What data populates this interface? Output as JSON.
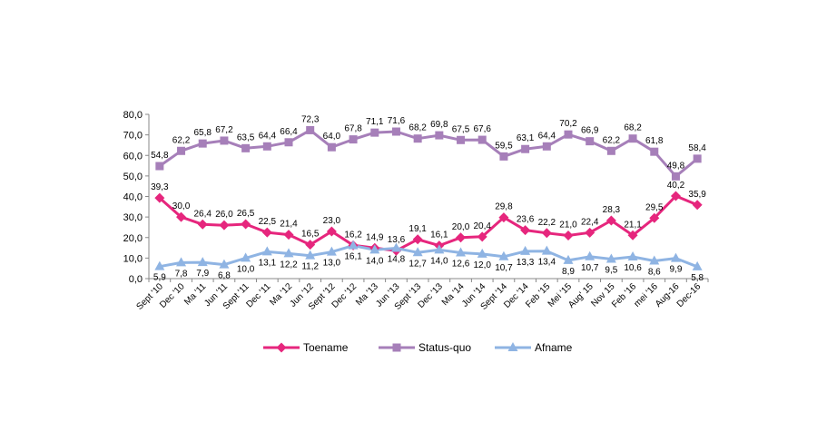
{
  "chart_data": {
    "type": "line",
    "categories": [
      "Sept '10",
      "Dec '10",
      "Ma '11",
      "Jun '11",
      "Sept '11",
      "Dec '11",
      "Ma '12",
      "Jun '12",
      "Sept '12",
      "Dec '12",
      "Ma '13",
      "Jun '13",
      "Sept '13",
      "Dec '13",
      "Ma '14",
      "Jun '14",
      "Sept '14",
      "Dec '14",
      "Feb '15",
      "Mei '15",
      "Aug' 15",
      "Nov 15",
      "Feb '16",
      "mei '16",
      "Aug-16",
      "Dec-16"
    ],
    "ylim": [
      0,
      80
    ],
    "yticks": [
      "0,0",
      "10,0",
      "20,0",
      "30,0",
      "40,0",
      "50,0",
      "60,0",
      "70,0",
      "80,0"
    ],
    "grid": false,
    "legend_position": "bottom",
    "series": [
      {
        "name": "Toename",
        "color": "#e6267d",
        "marker": "diamond",
        "values": [
          39.3,
          30.0,
          26.4,
          26.0,
          26.5,
          22.5,
          21.4,
          16.5,
          23.0,
          16.2,
          14.9,
          13.6,
          19.1,
          16.1,
          20.0,
          20.4,
          29.8,
          23.6,
          22.2,
          21.0,
          22.4,
          28.3,
          21.1,
          29.5,
          40.2,
          35.9
        ],
        "labels": [
          "39,3",
          "30,0",
          "26,4",
          "26,0",
          "26,5",
          "22,5",
          "21,4",
          "16,5",
          "23,0",
          "16,2",
          "14,9",
          "13,6",
          "19,1",
          "16,1",
          "20,0",
          "20,4",
          "29,8",
          "23,6",
          "22,2",
          "21,0",
          "22,4",
          "28,3",
          "21,1",
          "29,5",
          "40,2",
          "35,9"
        ]
      },
      {
        "name": "Status-quo",
        "color": "#a67fb9",
        "marker": "square",
        "values": [
          54.8,
          62.2,
          65.8,
          67.2,
          63.5,
          64.4,
          66.4,
          72.3,
          64.0,
          67.8,
          71.1,
          71.6,
          68.2,
          69.8,
          67.5,
          67.6,
          59.5,
          63.1,
          64.4,
          70.2,
          66.9,
          62.2,
          68.2,
          61.8,
          49.8,
          58.4
        ],
        "labels": [
          "54,8",
          "62,2",
          "65,8",
          "67,2",
          "63,5",
          "64,4",
          "66,4",
          "72,3",
          "64,0",
          "67,8",
          "71,1",
          "71,6",
          "68,2",
          "69,8",
          "67,5",
          "67,6",
          "59,5",
          "63,1",
          "64,4",
          "70,2",
          "66,9",
          "62,2",
          "68,2",
          "61,8",
          "49,8",
          "58,4"
        ]
      },
      {
        "name": "Afname",
        "color": "#8fb4e3",
        "marker": "triangle",
        "values": [
          5.9,
          7.8,
          7.9,
          6.8,
          10.0,
          13.1,
          12.2,
          11.2,
          13.0,
          16.1,
          14.0,
          14.8,
          12.7,
          14.0,
          12.6,
          12.0,
          10.7,
          13.3,
          13.4,
          8.9,
          10.7,
          9.5,
          10.6,
          8.6,
          9.9,
          5.8
        ],
        "labels": [
          "5,9",
          "7,8",
          "7,9",
          "6,8",
          "10,0",
          "13,1",
          "12,2",
          "11,2",
          "13,0",
          "16,1",
          "14,0",
          "14,8",
          "12,7",
          "14,0",
          "12,6",
          "12,0",
          "10,7",
          "13,3",
          "13,4",
          "8,9",
          "10,7",
          "9,5",
          "10,6",
          "8,6",
          "9,9",
          "5,8"
        ]
      }
    ]
  }
}
